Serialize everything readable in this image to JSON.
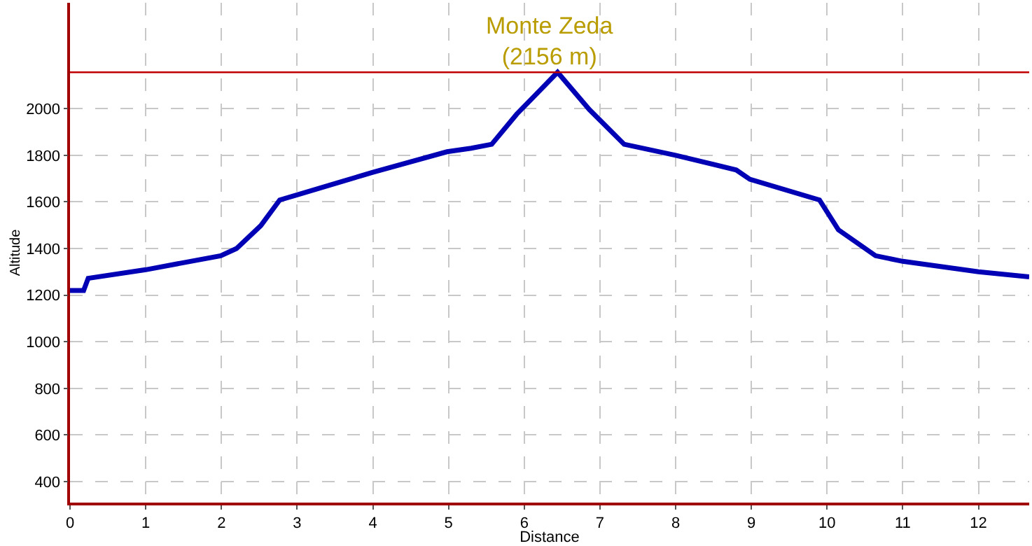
{
  "chart_data": {
    "type": "line",
    "xlabel": "Distance",
    "ylabel": "Altitude",
    "x": [
      0,
      0.18,
      0.24,
      1,
      1.99,
      2.2,
      2.52,
      2.77,
      3,
      4,
      4.98,
      5.3,
      5.57,
      5.9,
      6.44,
      6.86,
      7.32,
      8,
      8.8,
      8.98,
      9.9,
      10.15,
      10.64,
      11,
      12,
      12.67
    ],
    "series": [
      {
        "color": "#0000b4",
        "values": [
          1220,
          1220,
          1272,
          1309,
          1369,
          1400,
          1498,
          1608,
          1630,
          1727,
          1815,
          1830,
          1847,
          1976,
          2156,
          1996,
          1847,
          1800,
          1737,
          1697,
          1608,
          1480,
          1369,
          1345,
          1300,
          1278
        ]
      }
    ],
    "xlim": [
      0,
      12.67
    ],
    "ylim": [
      310,
      2454
    ],
    "xticks": [
      0,
      1,
      2,
      3,
      4,
      5,
      6,
      7,
      8,
      9,
      10,
      11,
      12
    ],
    "yticks": [
      400,
      600,
      800,
      1000,
      1200,
      1400,
      1600,
      1800,
      2000
    ],
    "grid": true,
    "line_style": "solid",
    "marker": "none",
    "ref_lines": [
      {
        "axis": "y",
        "value": 2156,
        "label": "Monte Zeda\n(2156 m)",
        "color": "#c00000"
      }
    ]
  }
}
